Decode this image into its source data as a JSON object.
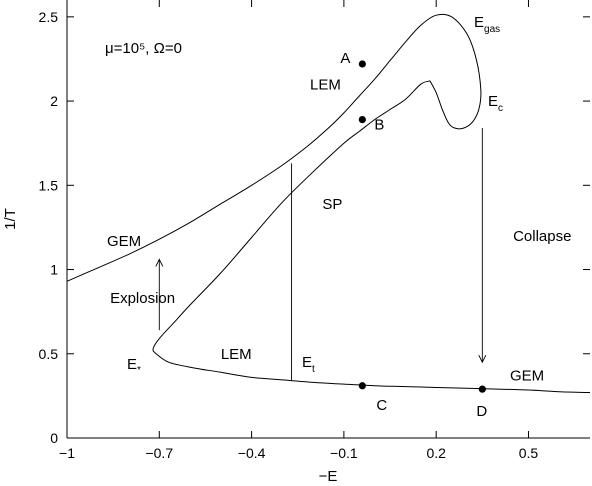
{
  "chart_data": {
    "type": "line",
    "xlabel": "−E",
    "ylabel": "1/T",
    "xlim": [
      -1.0,
      0.7
    ],
    "ylim": [
      0,
      2.6
    ],
    "x_ticks": [
      -1.0,
      -0.7,
      -0.4,
      -0.1,
      0.2,
      0.5
    ],
    "x_tick_labels": [
      "−1",
      "−0.7",
      "−0.4",
      "−0.1",
      "0.2",
      "0.5"
    ],
    "y_ticks": [
      0,
      0.5,
      1.0,
      1.5,
      2.0,
      2.5
    ],
    "y_tick_labels": [
      "0",
      "0.5",
      "1",
      "1.5",
      "2",
      "2.5"
    ],
    "grid": false,
    "parameter_label": "μ=10⁵, Ω=0",
    "series": [
      {
        "x": [
          -1.0,
          -0.9,
          -0.8,
          -0.7,
          -0.6,
          -0.5,
          -0.4,
          -0.3,
          -0.22,
          -0.15,
          -0.1,
          -0.05,
          0.0,
          0.05,
          0.1,
          0.15,
          0.2,
          0.25,
          0.3,
          0.33,
          0.345,
          0.34,
          0.32,
          0.29,
          0.26,
          0.24,
          0.22,
          0.2,
          0.18
        ],
        "y": [
          0.93,
          1.01,
          1.09,
          1.18,
          1.28,
          1.39,
          1.5,
          1.62,
          1.73,
          1.84,
          1.93,
          2.03,
          2.13,
          2.24,
          2.35,
          2.45,
          2.51,
          2.5,
          2.4,
          2.25,
          2.07,
          1.96,
          1.88,
          1.84,
          1.84,
          1.87,
          1.95,
          2.05,
          2.12
        ]
      },
      {
        "x": [
          0.18,
          0.15,
          0.1,
          0.05,
          0.0,
          -0.05,
          -0.1,
          -0.2,
          -0.3,
          -0.4,
          -0.5,
          -0.6,
          -0.65,
          -0.7,
          -0.72,
          -0.71,
          -0.67,
          -0.6,
          -0.5,
          -0.4,
          -0.3,
          -0.2,
          -0.1,
          0.0,
          0.1,
          0.2,
          0.3,
          0.4,
          0.5,
          0.6,
          0.7
        ],
        "y": [
          2.12,
          2.1,
          2.01,
          1.95,
          1.89,
          1.82,
          1.75,
          1.58,
          1.4,
          1.19,
          0.98,
          0.79,
          0.69,
          0.59,
          0.53,
          0.5,
          0.45,
          0.42,
          0.39,
          0.36,
          0.345,
          0.33,
          0.32,
          0.31,
          0.305,
          0.3,
          0.295,
          0.29,
          0.285,
          0.275,
          0.27
        ]
      }
    ],
    "points": [
      {
        "label": "A",
        "x": -0.04,
        "y": 2.22
      },
      {
        "label": "B",
        "x": -0.04,
        "y": 1.89
      },
      {
        "label": "C",
        "x": -0.04,
        "y": 0.31
      },
      {
        "label": "D",
        "x": 0.35,
        "y": 0.29
      }
    ],
    "arrows": [
      {
        "label": "Explosion",
        "x": -0.7,
        "y_from": 0.64,
        "y_to": 1.06
      },
      {
        "label": "Collapse",
        "x": 0.35,
        "y_from": 1.84,
        "y_to": 0.45
      }
    ],
    "vertical_lines": [
      {
        "x": -0.27,
        "y_from": 0.34,
        "y_to": 1.63
      }
    ],
    "annotations": [
      {
        "text": "GEM",
        "x": -0.87,
        "y": 1.14
      },
      {
        "text": "LEM",
        "x": -0.21,
        "y": 2.07
      },
      {
        "text": "SP",
        "x": -0.17,
        "y": 1.36
      },
      {
        "text": "LEM",
        "x": -0.5,
        "y": 0.47
      },
      {
        "text": "GEM",
        "x": 0.44,
        "y": 0.34
      },
      {
        "text": "Collapse",
        "x": 0.45,
        "y": 1.17
      },
      {
        "text": "Explosion",
        "x": -0.86,
        "y": 0.8
      }
    ],
    "energy_labels": {
      "egas": {
        "main": "E",
        "sub": "gas"
      },
      "ec": {
        "main": "E",
        "sub": "c"
      },
      "et": {
        "main": "E",
        "sub": "t"
      },
      "estar": {
        "main": "E",
        "sub": "*"
      }
    }
  }
}
